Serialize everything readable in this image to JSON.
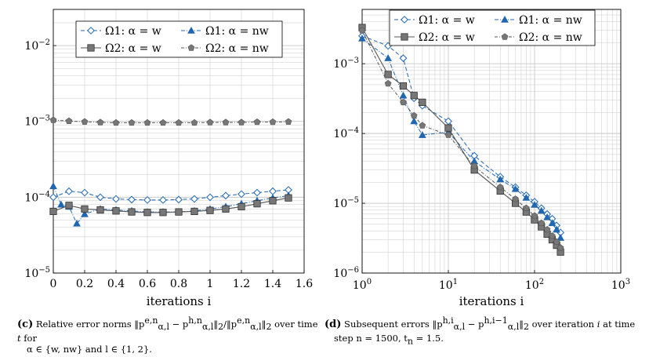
{
  "colors": {
    "omega1": "#2066b0",
    "omega2": "#555555",
    "marker2": "#777777",
    "grid": "#c8c8c8"
  },
  "chart_data": [
    {
      "type": "line",
      "panel": "c",
      "xlabel": "iterations i",
      "xlim": [
        0,
        1.6
      ],
      "ylim": [
        1e-05,
        0.03
      ],
      "yscale": "log",
      "grid": true,
      "legend_position": "top",
      "xticks": [
        "0",
        "0.2",
        "0.4",
        "0.6",
        "0.8",
        "1",
        "1.2",
        "1.4",
        "1.6"
      ],
      "yticks": [
        {
          "base": "10",
          "exp": "−5"
        },
        {
          "base": "10",
          "exp": "−4"
        },
        {
          "base": "10",
          "exp": "−3"
        },
        {
          "base": "10",
          "exp": "−2"
        }
      ],
      "caption": {
        "label": "(c)",
        "line1": "Relative error norms ‖p",
        "full": "Relative error norms ‖p^{e,n}_{α,l} − p^{h,n}_{α,l}‖₂/‖p^{e,n}_{α,l}‖₂ over time t for α ∈ {w, nw} and l ∈ {1, 2}."
      },
      "series": [
        {
          "name": "Ω1: α = w",
          "marker": "diamond",
          "x": [
            0,
            0.1,
            0.2,
            0.3,
            0.4,
            0.5,
            0.6,
            0.7,
            0.8,
            0.9,
            1.0,
            1.1,
            1.2,
            1.3,
            1.4,
            1.5
          ],
          "y": [
            0.0001,
            0.00012,
            0.000115,
            0.0001,
            9.5e-05,
            9.3e-05,
            9.2e-05,
            9.2e-05,
            9.3e-05,
            9.5e-05,
            0.0001,
            0.000105,
            0.00011,
            0.000115,
            0.00012,
            0.000125
          ]
        },
        {
          "name": "Ω1: α = nw",
          "marker": "triangle",
          "x": [
            0,
            0.05,
            0.1,
            0.15,
            0.2,
            0.3,
            0.4,
            0.5,
            0.6,
            0.7,
            0.8,
            0.9,
            1.0,
            1.1,
            1.2,
            1.3,
            1.4,
            1.5
          ],
          "y": [
            0.00014,
            8e-05,
            7.5e-05,
            4.5e-05,
            6e-05,
            7e-05,
            6.8e-05,
            6.6e-05,
            6.4e-05,
            6.4e-05,
            6.4e-05,
            6.6e-05,
            7e-05,
            7.5e-05,
            8.2e-05,
            9e-05,
            9.8e-05,
            0.000105
          ]
        },
        {
          "name": "Ω2: α = w",
          "marker": "square",
          "x": [
            0,
            0.1,
            0.2,
            0.3,
            0.4,
            0.5,
            0.6,
            0.7,
            0.8,
            0.9,
            1.0,
            1.1,
            1.2,
            1.3,
            1.4,
            1.5
          ],
          "y": [
            6.5e-05,
            7.8e-05,
            7e-05,
            6.8e-05,
            6.6e-05,
            6.4e-05,
            6.3e-05,
            6.3e-05,
            6.4e-05,
            6.5e-05,
            6.7e-05,
            7e-05,
            7.5e-05,
            8.2e-05,
            9e-05,
            9.8e-05
          ]
        },
        {
          "name": "Ω2: α = nw",
          "marker": "pentagon",
          "x": [
            0,
            0.1,
            0.2,
            0.3,
            0.4,
            0.5,
            0.6,
            0.7,
            0.8,
            0.9,
            1.0,
            1.1,
            1.2,
            1.3,
            1.4,
            1.5
          ],
          "y": [
            0.00104,
            0.00101,
            0.00099,
            0.00097,
            0.00096,
            0.00096,
            0.00096,
            0.00096,
            0.00096,
            0.00096,
            0.00097,
            0.00097,
            0.00097,
            0.00098,
            0.00098,
            0.00099
          ]
        }
      ]
    },
    {
      "type": "line",
      "panel": "d",
      "xlabel": "iterations i",
      "xscale": "log",
      "yscale": "log",
      "xlim": [
        1,
        1000
      ],
      "ylim": [
        1e-06,
        0.006
      ],
      "grid": true,
      "legend_position": "top",
      "xticks": [
        {
          "base": "10",
          "exp": "0"
        },
        {
          "base": "10",
          "exp": "1"
        },
        {
          "base": "10",
          "exp": "2"
        },
        {
          "base": "10",
          "exp": "3"
        }
      ],
      "yticks": [
        {
          "base": "10",
          "exp": "−6"
        },
        {
          "base": "10",
          "exp": "−5"
        },
        {
          "base": "10",
          "exp": "−4"
        },
        {
          "base": "10",
          "exp": "−3"
        }
      ],
      "caption": {
        "label": "(d)",
        "full": "Subsequent errors ‖p^{h,i}_{α,l} − p^{h,i−1}_{α,l}‖₂ over iteration i at time step n = 1500, t_n = 1.5."
      },
      "series": [
        {
          "name": "Ω1: α = w",
          "marker": "diamond",
          "x": [
            1,
            2,
            3,
            4,
            5,
            10,
            20,
            40,
            60,
            80,
            100,
            120,
            140,
            160,
            180,
            200
          ],
          "y": [
            0.0025,
            0.0018,
            0.0012,
            0.00032,
            0.00025,
            0.00015,
            4.8e-05,
            2.4e-05,
            1.7e-05,
            1.3e-05,
            1.05e-05,
            8.5e-06,
            7e-06,
            6e-06,
            4.8e-06,
            3.8e-06
          ]
        },
        {
          "name": "Ω1: α = nw",
          "marker": "triangle",
          "x": [
            1,
            2,
            3,
            4,
            5,
            10,
            20,
            40,
            60,
            80,
            100,
            120,
            140,
            160,
            180,
            200
          ],
          "y": [
            0.0023,
            0.0012,
            0.00035,
            0.00015,
            9.5e-05,
            0.000105,
            4e-05,
            2.2e-05,
            1.6e-05,
            1.2e-05,
            9.5e-06,
            7.8e-06,
            6.3e-06,
            5.2e-06,
            4.2e-06,
            3.2e-06
          ]
        },
        {
          "name": "Ω2: α = w",
          "marker": "square",
          "x": [
            1,
            2,
            3,
            4,
            5,
            10,
            20,
            40,
            60,
            80,
            100,
            120,
            140,
            160,
            180,
            200
          ],
          "y": [
            0.0033,
            0.0007,
            0.00048,
            0.00035,
            0.00028,
            0.00012,
            3e-05,
            1.5e-05,
            1e-05,
            7.5e-06,
            5.8e-06,
            4.6e-06,
            3.6e-06,
            3e-06,
            2.5e-06,
            2e-06
          ]
        },
        {
          "name": "Ω2: α = nw",
          "marker": "pentagon",
          "x": [
            1,
            2,
            3,
            4,
            5,
            10,
            20,
            40,
            60,
            80,
            100,
            120,
            140,
            160,
            180,
            200
          ],
          "y": [
            0.003,
            0.00052,
            0.00028,
            0.00018,
            0.00013,
            9.5e-05,
            3.4e-05,
            1.7e-05,
            1.15e-05,
            8.5e-06,
            6.6e-06,
            5.2e-06,
            4.2e-06,
            3.4e-06,
            2.8e-06,
            2.3e-06
          ]
        }
      ]
    }
  ],
  "captions": {
    "c_label": "(c)",
    "c_line1": "Relative error norms ‖p",
    "c_line2": "α ∈ {w, nw} and l ∈ {1, 2}.",
    "d_label": "(d)",
    "d_line2": "step n = 1500, t",
    "d_tail": " = 1.5."
  }
}
